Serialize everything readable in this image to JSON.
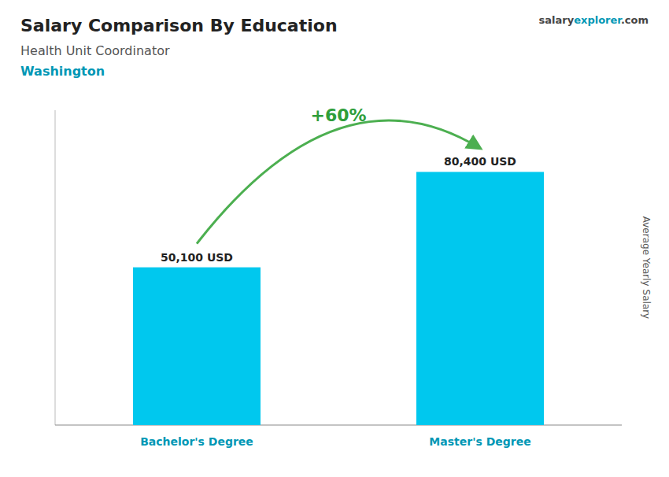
{
  "chart_data": {
    "type": "bar",
    "title": "Salary Comparison By Education",
    "subtitle": "Health Unit Coordinator",
    "annotations": [
      "Washington",
      "+60%",
      "salary",
      "explorer",
      ".com"
    ],
    "ylabel": "Average Yearly Salary",
    "categories": [
      "Bachelor's Degree",
      "Master's Degree"
    ],
    "values": [
      50100,
      80400
    ],
    "value_labels": [
      "50,100 USD",
      "80,400 USD"
    ],
    "color": "#00C8EE",
    "data_labels": true,
    "ylim": [
      0,
      100000
    ],
    "tick_labels": false,
    "grid": false
  }
}
